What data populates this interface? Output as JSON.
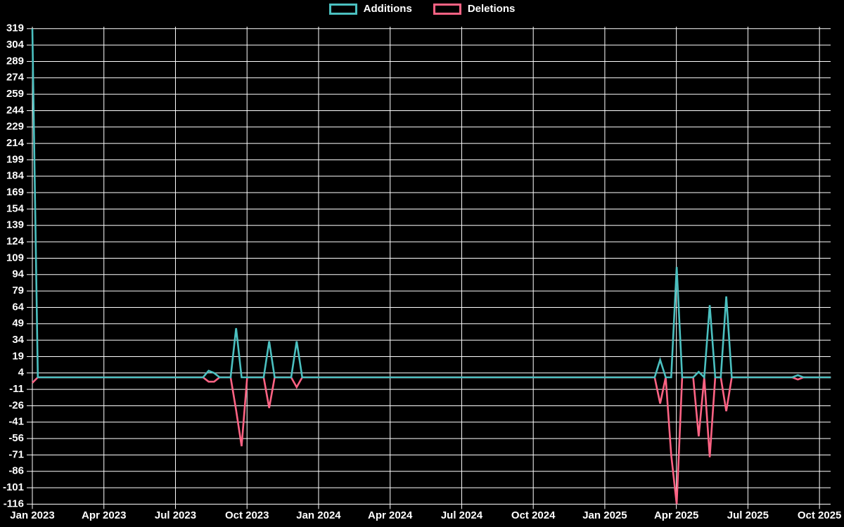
{
  "chart": {
    "legend": {
      "items": [
        {
          "label": "Additions",
          "color": "#4bc0c0"
        },
        {
          "label": "Deletions",
          "color": "#ff6384"
        }
      ]
    }
  },
  "chart_data": {
    "type": "line",
    "title": "",
    "xlabel": "",
    "ylabel": "",
    "background_color": "#000000",
    "grid_color": "#ffffff",
    "text_color": "#ffffff",
    "legend_position": "top-center",
    "grid": true,
    "y_ticks": [
      319,
      304,
      289,
      274,
      259,
      244,
      229,
      214,
      199,
      184,
      169,
      154,
      139,
      124,
      109,
      94,
      79,
      64,
      49,
      34,
      19,
      4,
      -11,
      -26,
      -41,
      -56,
      -71,
      -86,
      -101,
      -116
    ],
    "ylim": [
      -116,
      319
    ],
    "y_tick_step": 15,
    "x_tick_labels": [
      "Jan 2023",
      "Apr 2023",
      "Jul 2023",
      "Oct 2023",
      "Jan 2024",
      "Apr 2024",
      "Jul 2024",
      "Oct 2024",
      "Jan 2025",
      "Apr 2025",
      "Jul 2025",
      "Oct 2025"
    ],
    "x_unit": "weeks since Jan 2023",
    "total_weeks": 145,
    "series": [
      {
        "name": "Additions",
        "color": "#4bc0c0",
        "sign": "positive"
      },
      {
        "name": "Deletions",
        "color": "#ff6384",
        "sign": "negative"
      }
    ],
    "weekly_points_nonzero_comment": "[week_index, additions, deletions]; all other weeks are 0/0",
    "weekly_points_nonzero": [
      [
        0,
        319,
        -5
      ],
      [
        32,
        6,
        -4
      ],
      [
        33,
        4,
        -4
      ],
      [
        37,
        45,
        -30
      ],
      [
        38,
        0,
        -63
      ],
      [
        43,
        33,
        -28
      ],
      [
        48,
        33,
        -9
      ],
      [
        114,
        16,
        -24
      ],
      [
        116,
        0,
        -71
      ],
      [
        117,
        101,
        -116
      ],
      [
        121,
        5,
        -54
      ],
      [
        123,
        66,
        -73
      ],
      [
        126,
        74,
        -31
      ],
      [
        139,
        2,
        -2
      ]
    ]
  }
}
